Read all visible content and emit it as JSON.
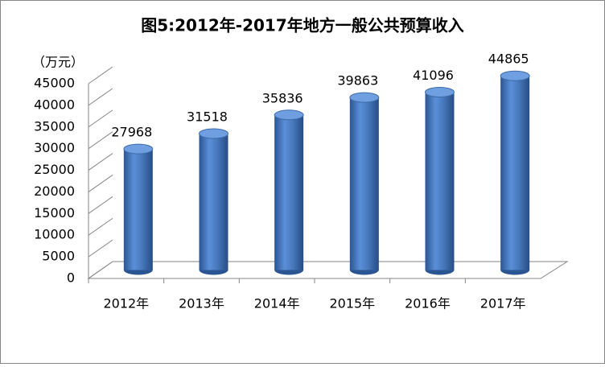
{
  "chart_data": {
    "type": "bar",
    "title": "图5:2012年-2017年地方一般公共预算收入",
    "y_label": "（万元）",
    "categories": [
      "2012年",
      "2013年",
      "2014年",
      "2015年",
      "2016年",
      "2017年"
    ],
    "values": [
      27968,
      31518,
      35836,
      39863,
      41096,
      44865
    ],
    "color": "#4a7bc0",
    "ylim": [
      0,
      45000
    ],
    "yticks": [
      0,
      5000,
      10000,
      15000,
      20000,
      25000,
      30000,
      35000,
      40000,
      45000
    ]
  }
}
